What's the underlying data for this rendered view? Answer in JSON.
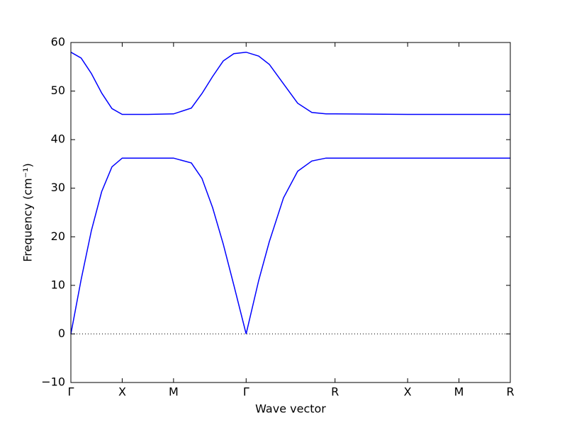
{
  "chart_data": {
    "type": "line",
    "xlabel": "Wave vector",
    "ylabel": "Frequency (cm⁻¹)",
    "x": [
      0,
      0.1,
      0.2,
      0.3,
      0.4,
      0.5,
      0.75,
      1.0,
      1.1735,
      1.2771,
      1.3806,
      1.4842,
      1.5877,
      1.7071,
      1.8293,
      1.9329,
      2.0709,
      2.209,
      2.3471,
      2.4852,
      2.5731,
      3.2802,
      3.7802,
      4.2802
    ],
    "series": [
      {
        "color": "#0000ff",
        "values": [
          0,
          11.2,
          21.3,
          29.3,
          34.4,
          36.2,
          36.2,
          36.2,
          35.2,
          32,
          26,
          18.5,
          10,
          0,
          11,
          19,
          28,
          33.5,
          35.6,
          36.2,
          36.2,
          36.2,
          36.2,
          36.2
        ]
      },
      {
        "color": "#0000ff",
        "values": [
          58,
          56.8,
          53.6,
          49.6,
          46.4,
          45.2,
          45.2,
          45.3,
          46.5,
          49.5,
          53,
          56.2,
          57.7,
          58,
          57.2,
          55.5,
          51.5,
          47.5,
          45.6,
          45.3,
          45.3,
          45.2,
          45.2,
          45.2
        ]
      }
    ],
    "xlim": [
      0,
      4.2802
    ],
    "xticks": [
      {
        "value": 0,
        "label": "Γ"
      },
      {
        "value": 0.5,
        "label": "X"
      },
      {
        "value": 1.0,
        "label": "M"
      },
      {
        "value": 1.7071,
        "label": "Γ"
      },
      {
        "value": 2.5731,
        "label": "R"
      },
      {
        "value": 3.2802,
        "label": "X"
      },
      {
        "value": 3.7802,
        "label": "M"
      },
      {
        "value": 4.2802,
        "label": "R"
      }
    ],
    "ylim": [
      -10,
      60
    ],
    "yticks": [
      {
        "value": -10,
        "label": "−10"
      },
      0,
      10,
      20,
      30,
      40,
      50,
      60
    ],
    "zero_line": true
  }
}
